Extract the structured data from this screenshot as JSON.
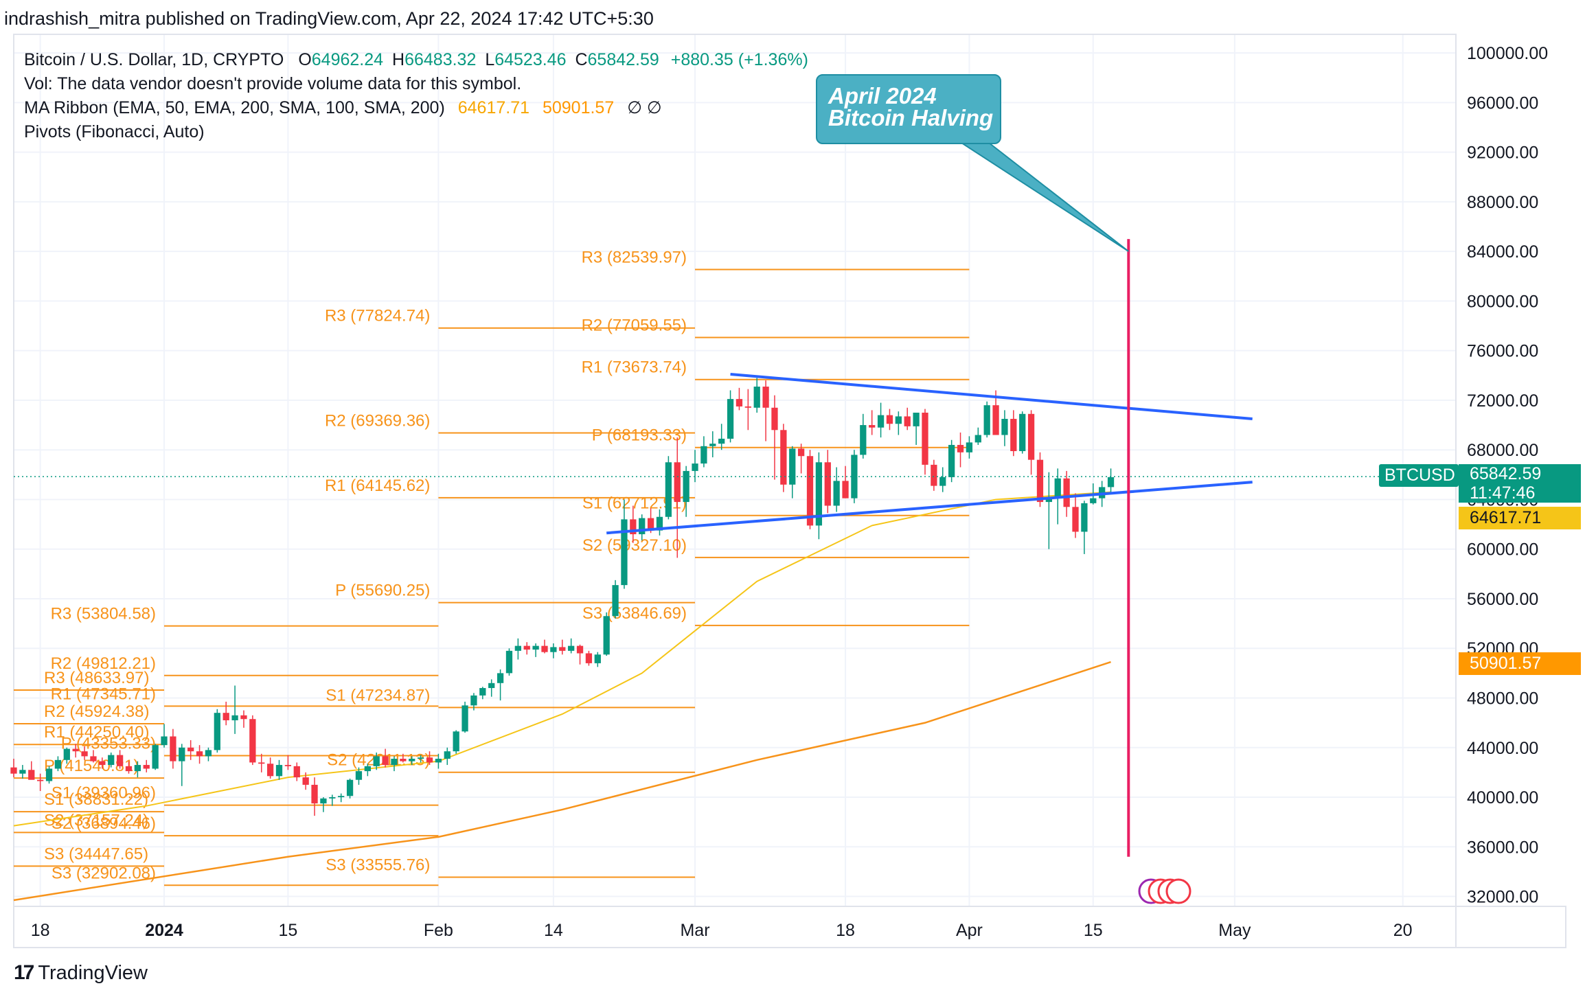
{
  "header": {
    "published": "indrashish_mitra published on TradingView.com, Apr 22, 2024 17:42 UTC+5:30"
  },
  "legend": {
    "symbol": "Bitcoin / U.S. Dollar, 1D, CRYPTO",
    "o_label": "O",
    "o_value": "64962.24",
    "h_label": "H",
    "h_value": "66483.32",
    "l_label": "L",
    "l_value": "64523.46",
    "c_label": "C",
    "c_value": "65842.59",
    "change": "+880.35 (+1.36%)",
    "vol_text": "Vol: The data vendor doesn't provide volume data for this symbol.",
    "ma_text": "MA Ribbon (EMA, 50, EMA, 200, SMA, 100, SMA, 200)",
    "ma_v1": "64617.71",
    "ma_v2": "50901.57",
    "ma_na": "∅  ∅",
    "pivots_text": "Pivots (Fibonacci, Auto)"
  },
  "annotation": {
    "line1": "April 2024",
    "line2": "Bitcoin Halving"
  },
  "price_tags": {
    "symbol": "BTCUSD",
    "price": "65842.59",
    "countdown": "11:47:46",
    "ema50": "64617.71",
    "ema200": "50901.57"
  },
  "footer": {
    "brand": "TradingView",
    "logo": "17"
  },
  "colors": {
    "up": "#089981",
    "down": "#f23645",
    "pivot": "#f7931a",
    "ema50": "#f5c518",
    "ema200": "#f7931a",
    "trend": "#2962ff",
    "halving": "#e91e63",
    "callout": "#4bb0c4"
  },
  "chart_data": {
    "type": "candlestick",
    "y_axis_side": "right",
    "ylim": [
      31200,
      101500
    ],
    "yticks": [
      32000,
      36000,
      40000,
      44000,
      48000,
      52000,
      56000,
      60000,
      64000,
      68000,
      72000,
      76000,
      80000,
      84000,
      88000,
      92000,
      96000,
      100000
    ],
    "ytick_labels": [
      "32000.00",
      "36000.00",
      "40000.00",
      "44000.00",
      "48000.00",
      "52000.00",
      "56000.00",
      "60000.00",
      "64000.00",
      "68000.00",
      "72000.00",
      "76000.00",
      "80000.00",
      "84000.00",
      "88000.00",
      "92000.00",
      "96000.00",
      "100000.00"
    ],
    "x_range": [
      "2023-12-15",
      "2024-05-26"
    ],
    "xticks": [
      {
        "date": "2023-12-18",
        "label": "18",
        "bold": false
      },
      {
        "date": "2024-01-01",
        "label": "2024",
        "bold": true
      },
      {
        "date": "2024-01-15",
        "label": "15",
        "bold": false
      },
      {
        "date": "2024-02-01",
        "label": "Feb",
        "bold": false
      },
      {
        "date": "2024-02-14",
        "label": "14",
        "bold": false
      },
      {
        "date": "2024-03-01",
        "label": "Mar",
        "bold": false
      },
      {
        "date": "2024-03-18",
        "label": "18",
        "bold": false
      },
      {
        "date": "2024-04-01",
        "label": "Apr",
        "bold": false
      },
      {
        "date": "2024-04-15",
        "label": "15",
        "bold": false
      },
      {
        "date": "2024-05-01",
        "label": "May",
        "bold": false
      },
      {
        "date": "2024-05-20",
        "label": "20",
        "bold": false
      }
    ],
    "candles_start": "2023-12-15",
    "candles": [
      [
        42400,
        43100,
        41600,
        41900
      ],
      [
        41900,
        42600,
        41500,
        42200
      ],
      [
        42200,
        42900,
        41700,
        41400
      ],
      [
        41400,
        41900,
        40500,
        41300
      ],
      [
        41300,
        42500,
        41100,
        42300
      ],
      [
        42300,
        43300,
        42100,
        43000
      ],
      [
        43000,
        44000,
        42700,
        43900
      ],
      [
        43900,
        44300,
        43200,
        43700
      ],
      [
        43700,
        44100,
        43000,
        43300
      ],
      [
        43300,
        43800,
        42800,
        42900
      ],
      [
        42900,
        43200,
        42300,
        42600
      ],
      [
        42600,
        43600,
        42400,
        43400
      ],
      [
        43400,
        43800,
        42300,
        42500
      ],
      [
        42500,
        42900,
        41900,
        42100
      ],
      [
        42100,
        42900,
        41600,
        42600
      ],
      [
        42600,
        43000,
        42000,
        42300
      ],
      [
        42300,
        44300,
        42200,
        44200
      ],
      [
        44200,
        45900,
        44000,
        44900
      ],
      [
        44900,
        45500,
        42300,
        42900
      ],
      [
        42900,
        44300,
        40900,
        44000
      ],
      [
        44000,
        44600,
        43000,
        43700
      ],
      [
        43700,
        44200,
        42700,
        43300
      ],
      [
        43300,
        44000,
        42900,
        43800
      ],
      [
        43800,
        47100,
        43600,
        46800
      ],
      [
        46800,
        47700,
        45800,
        46200
      ],
      [
        46200,
        49000,
        45100,
        46600
      ],
      [
        46600,
        47000,
        45600,
        46300
      ],
      [
        46300,
        46600,
        42600,
        42800
      ],
      [
        42800,
        43500,
        42000,
        42700
      ],
      [
        42700,
        43200,
        41500,
        41700
      ],
      [
        41700,
        43000,
        41400,
        42600
      ],
      [
        42600,
        43400,
        42200,
        42500
      ],
      [
        42500,
        42800,
        41300,
        41600
      ],
      [
        41600,
        42000,
        40600,
        41000
      ],
      [
        41000,
        41600,
        38500,
        39500
      ],
      [
        39500,
        40000,
        38800,
        39900
      ],
      [
        39900,
        40200,
        39300,
        40000
      ],
      [
        40000,
        40300,
        39600,
        40100
      ],
      [
        40100,
        41500,
        39900,
        41400
      ],
      [
        41400,
        42400,
        41000,
        42100
      ],
      [
        42100,
        42700,
        41700,
        42500
      ],
      [
        42500,
        43600,
        42200,
        43300
      ],
      [
        43300,
        43900,
        42400,
        42600
      ],
      [
        42600,
        43300,
        42100,
        43100
      ],
      [
        43100,
        43500,
        42800,
        42900
      ],
      [
        42900,
        43300,
        42600,
        43100
      ],
      [
        43100,
        43400,
        42800,
        43200
      ],
      [
        43200,
        43700,
        42600,
        42800
      ],
      [
        42800,
        43500,
        42300,
        43100
      ],
      [
        43100,
        44000,
        42600,
        43700
      ],
      [
        43700,
        45400,
        43500,
        45300
      ],
      [
        45300,
        47700,
        45200,
        47400
      ],
      [
        47400,
        48400,
        47000,
        48200
      ],
      [
        48200,
        48900,
        47900,
        48800
      ],
      [
        48800,
        49500,
        48100,
        49200
      ],
      [
        49200,
        50300,
        47800,
        50000
      ],
      [
        50000,
        52000,
        49800,
        51800
      ],
      [
        51800,
        52800,
        51100,
        52200
      ],
      [
        52200,
        52500,
        51500,
        51900
      ],
      [
        51900,
        52400,
        51300,
        52200
      ],
      [
        52200,
        52700,
        51600,
        51700
      ],
      [
        51700,
        52400,
        51200,
        52100
      ],
      [
        52100,
        52700,
        51500,
        51800
      ],
      [
        51800,
        52800,
        51600,
        52200
      ],
      [
        52200,
        52300,
        50700,
        51600
      ],
      [
        51600,
        51800,
        50600,
        50800
      ],
      [
        50800,
        51700,
        50500,
        51500
      ],
      [
        51500,
        54900,
        51400,
        54600
      ],
      [
        54600,
        57500,
        54400,
        57100
      ],
      [
        57100,
        64000,
        56800,
        62400
      ],
      [
        62400,
        63500,
        60500,
        61200
      ],
      [
        61200,
        62800,
        60700,
        62500
      ],
      [
        62500,
        63300,
        61300,
        61500
      ],
      [
        61500,
        63200,
        61100,
        62600
      ],
      [
        62600,
        67500,
        62400,
        67000
      ],
      [
        67000,
        69000,
        59300,
        63800
      ],
      [
        63800,
        66700,
        62600,
        66300
      ],
      [
        66300,
        68000,
        65400,
        66900
      ],
      [
        66900,
        69100,
        66600,
        68300
      ],
      [
        68300,
        69500,
        67400,
        68500
      ],
      [
        68500,
        70100,
        68000,
        68900
      ],
      [
        68900,
        72800,
        68600,
        72100
      ],
      [
        72100,
        73000,
        71200,
        71500
      ],
      [
        71500,
        72900,
        69600,
        71400
      ],
      [
        71400,
        73800,
        71000,
        73100
      ],
      [
        73100,
        73600,
        68700,
        71400
      ],
      [
        71400,
        72400,
        65600,
        69600
      ],
      [
        69600,
        70100,
        64600,
        65200
      ],
      [
        65200,
        68300,
        64100,
        68100
      ],
      [
        68100,
        68500,
        66100,
        67500
      ],
      [
        67500,
        68000,
        61600,
        61900
      ],
      [
        61900,
        67800,
        60800,
        67000
      ],
      [
        67000,
        68000,
        62900,
        63500
      ],
      [
        63500,
        66600,
        63000,
        65500
      ],
      [
        65500,
        66700,
        64100,
        64100
      ],
      [
        64100,
        68000,
        63700,
        67600
      ],
      [
        67600,
        70900,
        67300,
        70000
      ],
      [
        70000,
        71200,
        69200,
        69800
      ],
      [
        69800,
        71800,
        69000,
        70800
      ],
      [
        70800,
        71300,
        69600,
        70100
      ],
      [
        70100,
        71100,
        69200,
        70700
      ],
      [
        70700,
        71400,
        69600,
        69900
      ],
      [
        69900,
        71000,
        68400,
        71000
      ],
      [
        71000,
        71300,
        66000,
        66800
      ],
      [
        66800,
        67200,
        64700,
        65100
      ],
      [
        65100,
        66600,
        64600,
        65800
      ],
      [
        65800,
        68800,
        65400,
        68400
      ],
      [
        68400,
        69400,
        66600,
        67800
      ],
      [
        67800,
        69100,
        67300,
        68600
      ],
      [
        68600,
        69800,
        68400,
        69200
      ],
      [
        69200,
        71900,
        69000,
        71600
      ],
      [
        71600,
        72800,
        69700,
        69200
      ],
      [
        69200,
        71200,
        68300,
        70500
      ],
      [
        70500,
        71200,
        67500,
        67900
      ],
      [
        67900,
        71100,
        67700,
        70900
      ],
      [
        70900,
        71200,
        66000,
        67200
      ],
      [
        67200,
        67800,
        63400,
        63800
      ],
      [
        63800,
        66200,
        60000,
        64100
      ],
      [
        64100,
        66500,
        62000,
        65700
      ],
      [
        65700,
        66300,
        62600,
        63400
      ],
      [
        63400,
        64500,
        60900,
        61400
      ],
      [
        61400,
        63900,
        59600,
        63700
      ],
      [
        63700,
        65300,
        63600,
        64100
      ],
      [
        64100,
        65500,
        63400,
        65000
      ],
      [
        65000,
        66500,
        64500,
        65800
      ]
    ],
    "series": [
      {
        "name": "EMA 50",
        "values_sampled": [
          [
            0,
            37700
          ],
          [
            15,
            39300
          ],
          [
            31,
            41600
          ],
          [
            48,
            42900
          ],
          [
            62,
            46700
          ],
          [
            71,
            50000
          ],
          [
            84,
            57400
          ],
          [
            97,
            61900
          ],
          [
            111,
            64000
          ],
          [
            124,
            64600
          ]
        ]
      },
      {
        "name": "EMA 200",
        "values_sampled": [
          [
            0,
            31700
          ],
          [
            31,
            35200
          ],
          [
            48,
            36800
          ],
          [
            62,
            39000
          ],
          [
            84,
            43000
          ],
          [
            103,
            46000
          ],
          [
            124,
            50900
          ]
        ]
      }
    ],
    "trendlines": [
      {
        "points": [
          [
            "2024-03-05",
            74100
          ],
          [
            "2024-05-03",
            70500
          ]
        ]
      },
      {
        "points": [
          [
            "2024-02-20",
            61300
          ],
          [
            "2024-05-03",
            65400
          ]
        ]
      }
    ],
    "vertical_line": {
      "date": "2024-04-19",
      "from": 35200,
      "to": 85000
    },
    "pivots": [
      {
        "period": "Dec",
        "x_end": "2024-01-01",
        "levels": [
          {
            "label": "R3 (48633.97)",
            "value": 48634
          },
          {
            "label": "R2 (45924.38)",
            "value": 45924
          },
          {
            "label": "R1 (44250.40)",
            "value": 44250
          },
          {
            "label": "P (41540.81)",
            "value": 41541
          },
          {
            "label": "S1 (38831.22)",
            "value": 38831
          },
          {
            "label": "S2 (37157.24)",
            "value": 37157
          },
          {
            "label": "S3 (34447.65)",
            "value": 34448
          }
        ]
      },
      {
        "period": "Jan",
        "x_start": "2024-01-01",
        "x_end": "2024-02-01",
        "levels": [
          {
            "label": "R1 (47345.71)",
            "value": 47346
          },
          {
            "label": "R2 (49812.21)",
            "value": 49812
          },
          {
            "label": "R3 (53804.58)",
            "value": 53805
          },
          {
            "label": "P (43353.33)",
            "value": 43353
          },
          {
            "label": "S1 (39360.96)",
            "value": 39361
          },
          {
            "label": "S2 (36894.46)",
            "value": 36894
          },
          {
            "label": "S3 (32902.08)",
            "value": 32902
          }
        ]
      },
      {
        "period": "Feb",
        "x_start": "2024-02-01",
        "x_end": "2024-03-01",
        "levels": [
          {
            "label": "R3 (77824.74)",
            "value": 77825
          },
          {
            "label": "R2 (69369.36)",
            "value": 69369
          },
          {
            "label": "R1 (64145.62)",
            "value": 64146
          },
          {
            "label": "P (55690.25)",
            "value": 55690
          },
          {
            "label": "S1 (47234.87)",
            "value": 47235
          },
          {
            "label": "S2 (42011.13)",
            "value": 42011
          },
          {
            "label": "S3 (33555.76)",
            "value": 33556
          }
        ]
      },
      {
        "period": "Mar",
        "x_start": "2024-03-01",
        "x_end": "2024-04-01",
        "levels": [
          {
            "label": "R3 (82539.97)",
            "value": 82540
          },
          {
            "label": "R2 (77059.55)",
            "value": 77060
          },
          {
            "label": "R1 (73673.74)",
            "value": 73674
          },
          {
            "label": "P (68193.33)",
            "value": 68193
          },
          {
            "label": "S1 (62712.91)",
            "value": 62713
          },
          {
            "label": "S2 (59327.10)",
            "value": 59327
          },
          {
            "label": "S3 (53846.69)",
            "value": 53847
          }
        ]
      }
    ],
    "last_price": 65842.59
  }
}
